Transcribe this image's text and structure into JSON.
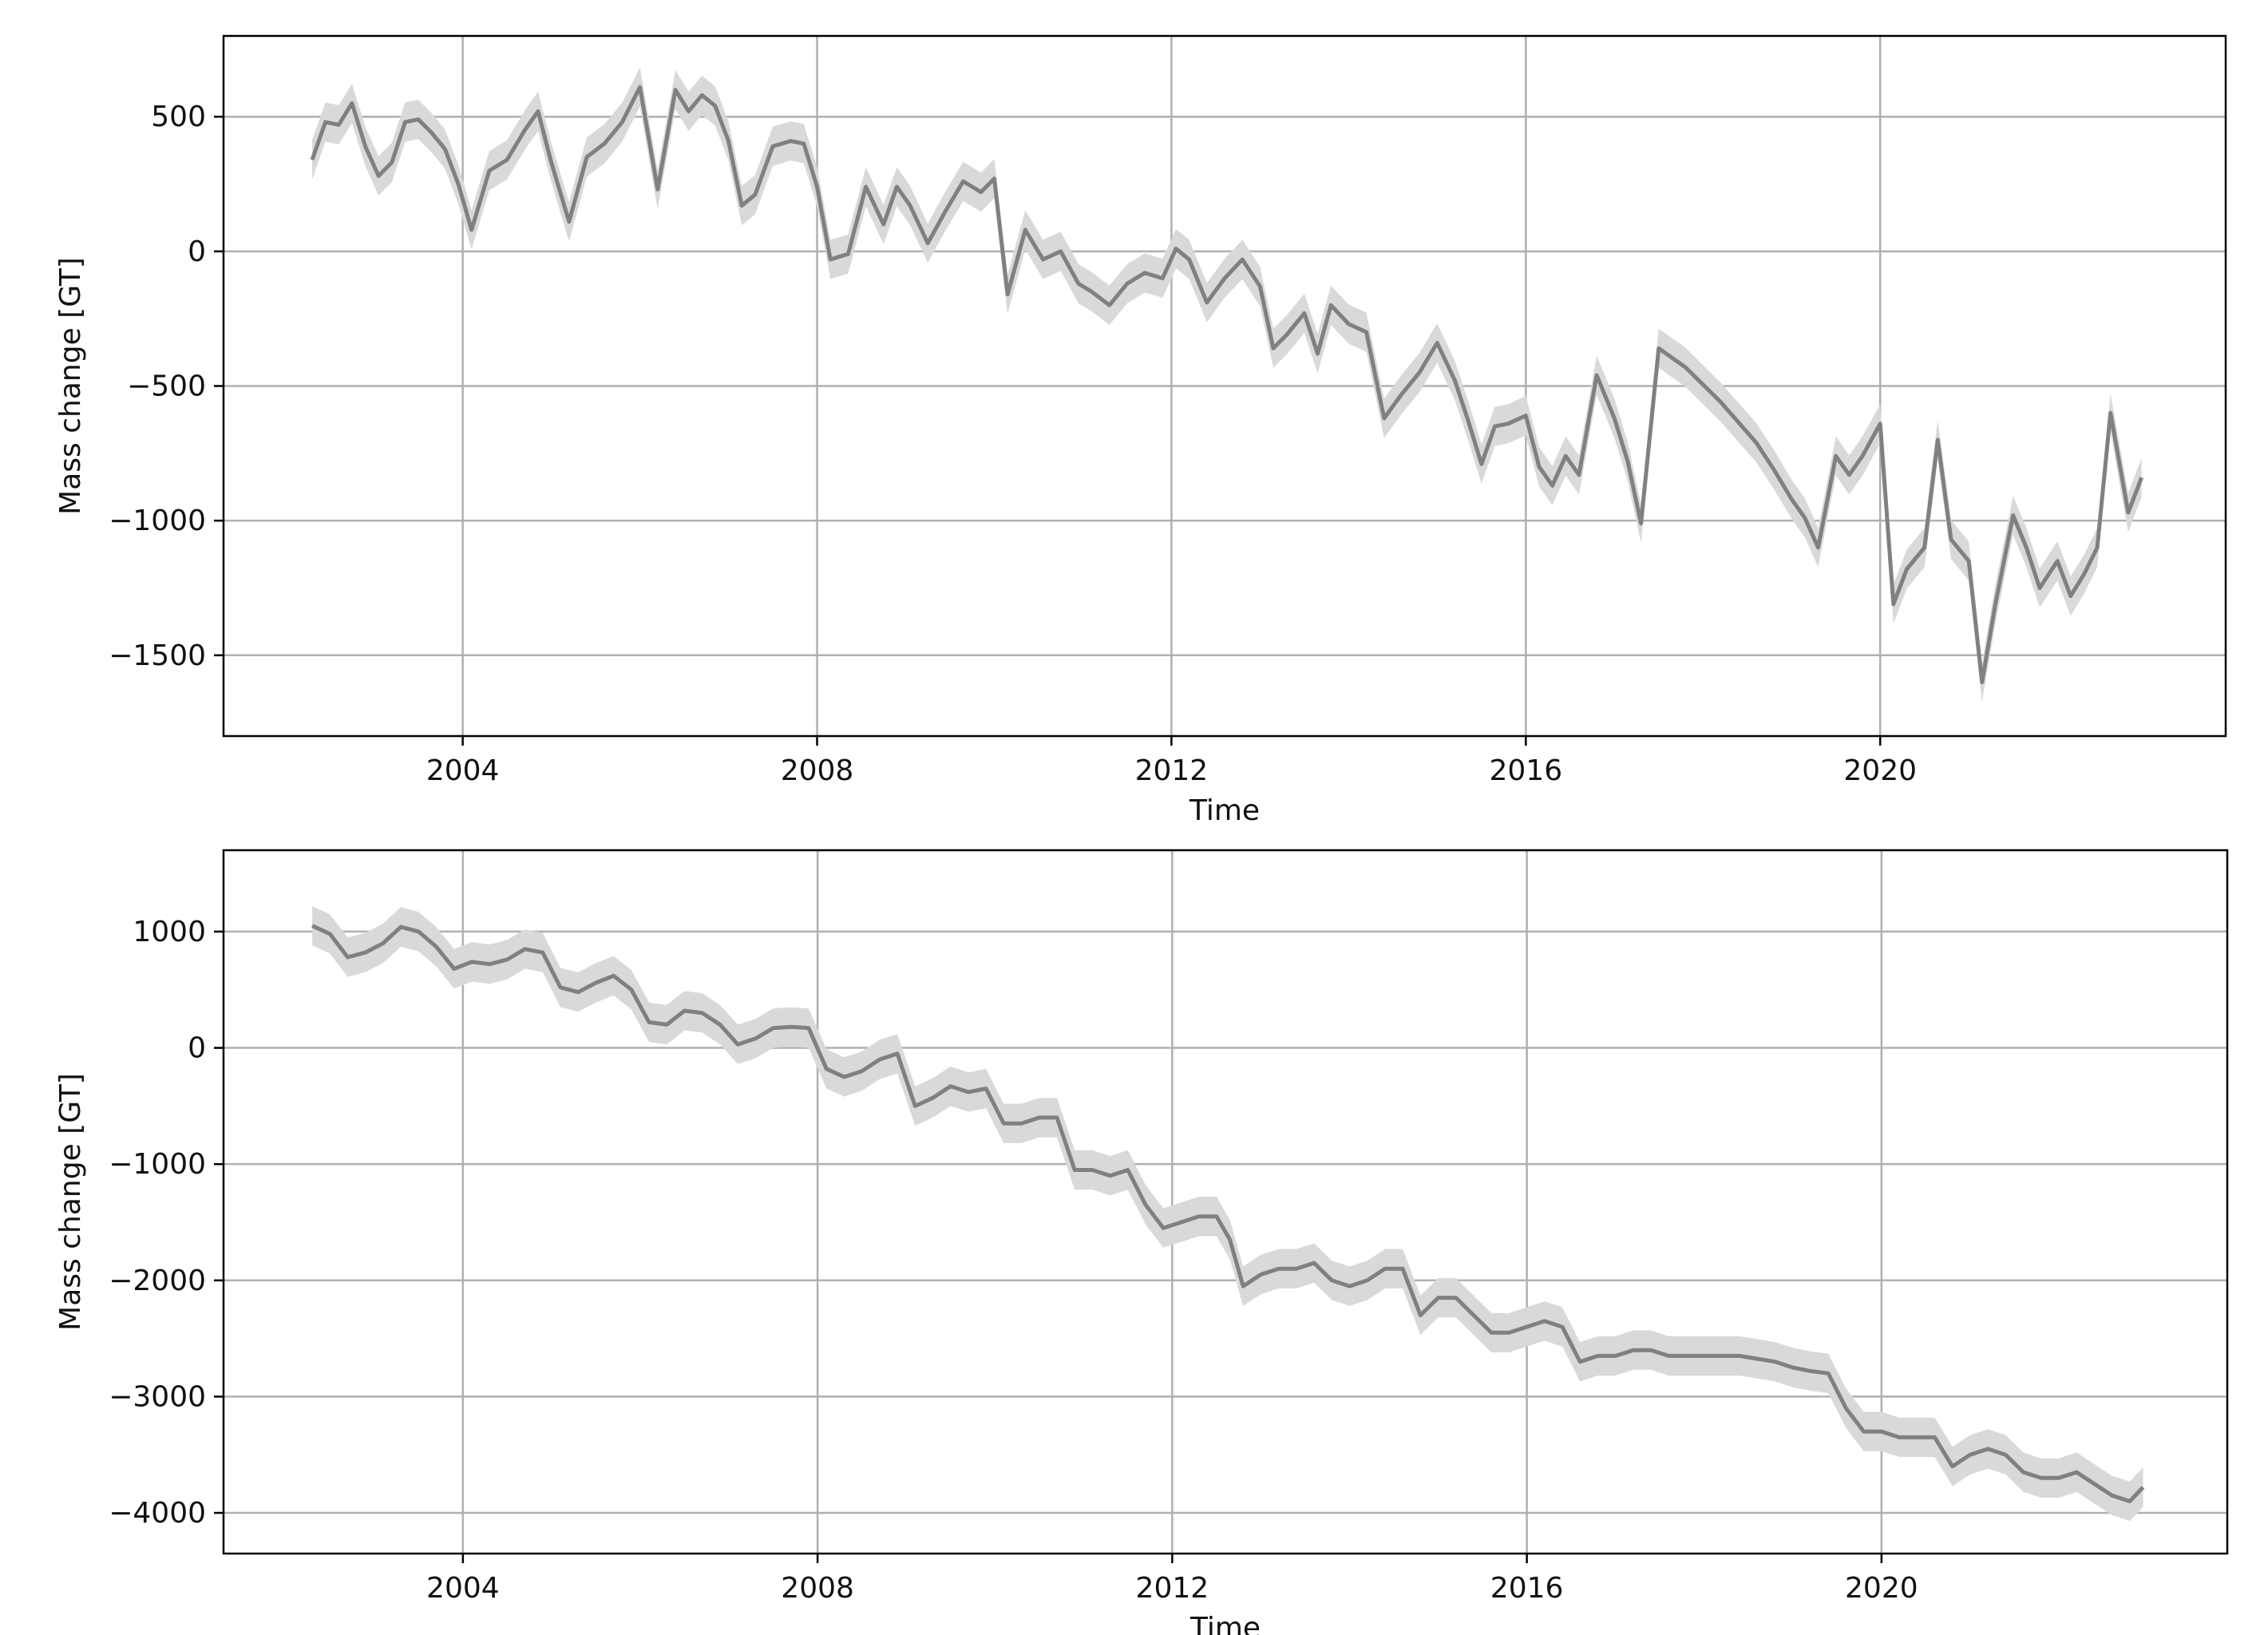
{
  "chart_data": [
    {
      "type": "line",
      "xlabel": "Time",
      "ylabel": "Mass change [GT]",
      "xlim": [
        2001.3,
        2023.9
      ],
      "ylim": [
        -1800,
        800
      ],
      "x_ticks": [
        2004,
        2008,
        2012,
        2016,
        2020
      ],
      "y_ticks": [
        500,
        0,
        -500,
        -1000,
        -1500
      ],
      "y_tick_labels": [
        "500",
        "0",
        "−500",
        "−1000",
        "−1500"
      ],
      "grid": true,
      "line_color": "#808080",
      "band_color": "#d9d9d9",
      "series": [
        {
          "x": [
            2002.3,
            2002.45,
            2002.6,
            2002.75,
            2002.9,
            2003.05,
            2003.2,
            2003.35,
            2003.5,
            2003.65,
            2003.8,
            2003.95,
            2004.1,
            2004.3,
            2004.5,
            2004.7,
            2004.85,
            2005.0,
            2005.2,
            2005.4,
            2005.6,
            2005.8,
            2006.0,
            2006.2,
            2006.4,
            2006.55,
            2006.7,
            2006.85,
            2007.0,
            2007.15,
            2007.3,
            2007.5,
            2007.7,
            2007.85,
            2008.0,
            2008.15,
            2008.35,
            2008.55,
            2008.75,
            2008.9,
            2009.05,
            2009.25,
            2009.45,
            2009.65,
            2009.85,
            2010.0,
            2010.15,
            2010.35,
            2010.55,
            2010.75,
            2010.95,
            2011.1,
            2011.3,
            2011.5,
            2011.7,
            2011.9,
            2012.05,
            2012.2,
            2012.4,
            2012.6,
            2012.8,
            2013.0,
            2013.15,
            2013.3,
            2013.5,
            2013.65,
            2013.8,
            2014.0,
            2014.2,
            2014.4,
            2014.6,
            2014.8,
            2015.0,
            2015.2,
            2015.35,
            2015.5,
            2015.65,
            2015.8,
            2016.0,
            2016.15,
            2016.3,
            2016.45,
            2016.6,
            2016.8,
            2017.0,
            2017.15,
            2017.3,
            2017.5,
            2017.8,
            2018.2,
            2018.6,
            2018.8,
            2019.0,
            2019.15,
            2019.3,
            2019.5,
            2019.65,
            2019.8,
            2020.0,
            2020.15,
            2020.3,
            2020.5,
            2020.65,
            2020.8,
            2021.0,
            2021.15,
            2021.3,
            2021.5,
            2021.65,
            2021.8,
            2022.0,
            2022.15,
            2022.3,
            2022.45,
            2022.6,
            2022.8,
            2022.95
          ],
          "y": [
            340,
            480,
            470,
            550,
            390,
            280,
            330,
            480,
            490,
            440,
            380,
            250,
            80,
            300,
            340,
            450,
            520,
            330,
            110,
            350,
            400,
            480,
            610,
            230,
            600,
            520,
            580,
            540,
            410,
            170,
            210,
            390,
            410,
            400,
            240,
            -30,
            -10,
            240,
            100,
            240,
            170,
            30,
            150,
            260,
            220,
            270,
            -160,
            80,
            -30,
            0,
            -120,
            -150,
            -200,
            -120,
            -80,
            -100,
            10,
            -30,
            -190,
            -100,
            -30,
            -130,
            -360,
            -310,
            -230,
            -380,
            -200,
            -270,
            -300,
            -620,
            -530,
            -450,
            -340,
            -480,
            -630,
            -790,
            -650,
            -640,
            -610,
            -800,
            -870,
            -760,
            -830,
            -460,
            -620,
            -780,
            -1010,
            -360,
            -430,
            -560,
            -710,
            -810,
            -920,
            -990,
            -1100,
            -760,
            -830,
            -760,
            -640,
            -1310,
            -1180,
            -1100,
            -700,
            -1070,
            -1150,
            -1600,
            -1310,
            -980,
            -1100,
            -1250,
            -1150,
            -1280,
            -1200,
            -1100,
            -600,
            -970,
            -840
          ]
        }
      ]
    },
    {
      "type": "line",
      "xlabel": "Time",
      "ylabel": "Mass change [GT]",
      "xlim": [
        2001.3,
        2023.9
      ],
      "ylim": [
        -4350,
        1700
      ],
      "x_ticks": [
        2004,
        2008,
        2012,
        2016,
        2020
      ],
      "y_ticks": [
        1000,
        0,
        -1000,
        -2000,
        -3000,
        -4000
      ],
      "y_tick_labels": [
        "1000",
        "0",
        "−1000",
        "−2000",
        "−3000",
        "−4000"
      ],
      "grid": true,
      "line_color": "#808080",
      "band_color": "#d9d9d9",
      "series": [
        {
          "x": [
            2002.3,
            2002.5,
            2002.7,
            2002.9,
            2003.1,
            2003.3,
            2003.5,
            2003.7,
            2003.9,
            2004.1,
            2004.3,
            2004.5,
            2004.7,
            2004.9,
            2005.1,
            2005.3,
            2005.5,
            2005.7,
            2005.9,
            2006.1,
            2006.3,
            2006.5,
            2006.7,
            2006.9,
            2007.1,
            2007.3,
            2007.5,
            2007.7,
            2007.9,
            2008.1,
            2008.3,
            2008.5,
            2008.7,
            2008.9,
            2009.1,
            2009.3,
            2009.5,
            2009.7,
            2009.9,
            2010.1,
            2010.3,
            2010.5,
            2010.7,
            2010.9,
            2011.1,
            2011.3,
            2011.5,
            2011.7,
            2011.9,
            2012.1,
            2012.3,
            2012.5,
            2012.65,
            2012.8,
            2013.0,
            2013.2,
            2013.4,
            2013.6,
            2013.8,
            2014.0,
            2014.2,
            2014.4,
            2014.6,
            2014.8,
            2015.0,
            2015.2,
            2015.4,
            2015.6,
            2015.8,
            2016.0,
            2016.2,
            2016.4,
            2016.6,
            2016.8,
            2017.0,
            2017.2,
            2017.4,
            2017.6,
            2018.0,
            2018.4,
            2018.8,
            2019.0,
            2019.2,
            2019.4,
            2019.6,
            2019.8,
            2020.0,
            2020.2,
            2020.4,
            2020.6,
            2020.8,
            2021.0,
            2021.2,
            2021.4,
            2021.6,
            2021.8,
            2022.0,
            2022.2,
            2022.4,
            2022.6,
            2022.8,
            2022.95
          ],
          "y": [
            1050,
            980,
            780,
            820,
            900,
            1040,
            1000,
            870,
            680,
            740,
            720,
            760,
            850,
            820,
            520,
            480,
            560,
            620,
            500,
            220,
            200,
            320,
            300,
            200,
            30,
            80,
            170,
            180,
            170,
            -180,
            -250,
            -200,
            -100,
            -50,
            -500,
            -430,
            -330,
            -380,
            -350,
            -650,
            -650,
            -600,
            -600,
            -1050,
            -1050,
            -1100,
            -1050,
            -1350,
            -1550,
            -1500,
            -1450,
            -1450,
            -1650,
            -2050,
            -1950,
            -1900,
            -1900,
            -1850,
            -2000,
            -2050,
            -2000,
            -1900,
            -1900,
            -2300,
            -2150,
            -2150,
            -2300,
            -2450,
            -2450,
            -2400,
            -2350,
            -2400,
            -2700,
            -2650,
            -2650,
            -2600,
            -2600,
            -2650,
            -2650,
            -2650,
            -2700,
            -2750,
            -2780,
            -2800,
            -3100,
            -3300,
            -3300,
            -3350,
            -3350,
            -3350,
            -3600,
            -3500,
            -3450,
            -3500,
            -3650,
            -3700,
            -3700,
            -3650,
            -3750,
            -3850,
            -3900,
            -3780
          ]
        }
      ]
    }
  ]
}
